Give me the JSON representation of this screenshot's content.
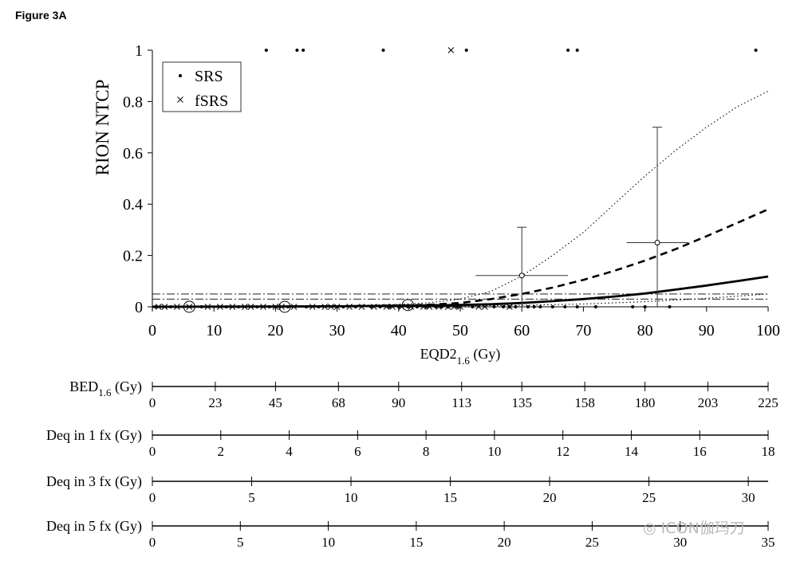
{
  "figure_label": "Figure 3A",
  "watermark": "ICON伽玛刀",
  "chart_data": {
    "type": "scatter",
    "xlabel": "EQD2",
    "xlabel_sub": "1.6",
    "xlabel_unit": " (Gy)",
    "ylabel": "RION NTCP",
    "xlim": [
      0,
      100
    ],
    "ylim": [
      0,
      1
    ],
    "x_ticks": [
      0,
      10,
      20,
      30,
      40,
      50,
      60,
      70,
      80,
      90,
      100
    ],
    "y_ticks": [
      {
        "value": 0,
        "label": "0"
      },
      {
        "value": 0.2,
        "label": "0.2"
      },
      {
        "value": 0.4,
        "label": "0.4"
      },
      {
        "value": 0.6,
        "label": "0.6"
      },
      {
        "value": 0.8,
        "label": "0.8"
      },
      {
        "value": 1,
        "label": "1"
      }
    ],
    "legend": {
      "placement": "top-left",
      "entries": [
        {
          "marker": "dot",
          "label": "SRS"
        },
        {
          "marker": "cross",
          "label": "fSRS"
        }
      ]
    },
    "series": [
      {
        "name": "SRS",
        "marker": "dot",
        "points": [
          [
            18.5,
            1
          ],
          [
            23.5,
            1
          ],
          [
            24.5,
            1
          ],
          [
            37.5,
            1
          ],
          [
            51,
            1
          ],
          [
            67.5,
            1
          ],
          [
            69,
            1
          ],
          [
            98,
            1
          ],
          [
            0.5,
            0
          ],
          [
            3,
            0
          ],
          [
            8,
            0
          ],
          [
            12,
            0
          ],
          [
            14,
            0
          ],
          [
            17,
            0
          ],
          [
            19,
            0
          ],
          [
            22,
            0
          ],
          [
            25,
            0
          ],
          [
            27,
            0
          ],
          [
            31,
            0
          ],
          [
            33,
            0
          ],
          [
            35.5,
            0
          ],
          [
            37,
            0
          ],
          [
            38.5,
            0
          ],
          [
            40,
            0
          ],
          [
            41.5,
            0
          ],
          [
            43,
            0
          ],
          [
            44.5,
            0
          ],
          [
            46,
            0
          ],
          [
            47,
            0
          ],
          [
            48,
            0
          ],
          [
            49.5,
            0
          ],
          [
            52,
            0
          ],
          [
            55.5,
            0
          ],
          [
            57,
            0
          ],
          [
            58,
            0
          ],
          [
            59,
            0
          ],
          [
            61,
            0
          ],
          [
            62,
            0
          ],
          [
            63,
            0
          ],
          [
            65,
            0
          ],
          [
            67,
            0
          ],
          [
            69,
            0
          ],
          [
            72,
            0
          ],
          [
            78,
            0
          ],
          [
            80,
            0
          ],
          [
            84,
            0
          ]
        ]
      },
      {
        "name": "fSRS",
        "marker": "cross",
        "points": [
          [
            48.5,
            1
          ],
          [
            1,
            0
          ],
          [
            2,
            0
          ],
          [
            4,
            0
          ],
          [
            6,
            0
          ],
          [
            9,
            0
          ],
          [
            11,
            0
          ],
          [
            13,
            0
          ],
          [
            15,
            0
          ],
          [
            16,
            0
          ],
          [
            18,
            0
          ],
          [
            20,
            0
          ],
          [
            21,
            0
          ],
          [
            23,
            0
          ],
          [
            26,
            0
          ],
          [
            28,
            0
          ],
          [
            29,
            0
          ],
          [
            30,
            0
          ],
          [
            32,
            0
          ],
          [
            34,
            0
          ],
          [
            36,
            0
          ],
          [
            38,
            0
          ],
          [
            39,
            0
          ],
          [
            40.5,
            0
          ],
          [
            42,
            0
          ],
          [
            44,
            0
          ],
          [
            45,
            0
          ],
          [
            46.5,
            0
          ],
          [
            48,
            0
          ],
          [
            49,
            0
          ],
          [
            50,
            0
          ],
          [
            53,
            0
          ],
          [
            54,
            0
          ],
          [
            58,
            0
          ]
        ]
      }
    ],
    "binned_estimates": [
      {
        "x": 6,
        "y": 0,
        "marker": "circle"
      },
      {
        "x": 21.5,
        "y": 0,
        "marker": "circle"
      },
      {
        "x": 41.5,
        "y": 0.007,
        "marker": "circle"
      },
      {
        "x": 60,
        "y": 0.122,
        "x_err": [
          52.5,
          67.5
        ],
        "y_err": [
          0,
          0.31
        ]
      },
      {
        "x": 82,
        "y": 0.25,
        "x_err": [
          77,
          87
        ],
        "y_err": [
          0,
          0.7
        ]
      }
    ],
    "model_curves": [
      {
        "style": "solid",
        "x": [
          0,
          10,
          20,
          30,
          40,
          50,
          55,
          60,
          65,
          70,
          75,
          80,
          85,
          90,
          95,
          100
        ],
        "y": [
          0,
          0.0005,
          0.001,
          0.002,
          0.004,
          0.007,
          0.01,
          0.015,
          0.022,
          0.03,
          0.04,
          0.052,
          0.067,
          0.083,
          0.1,
          0.118
        ]
      },
      {
        "style": "dashed",
        "x": [
          0,
          10,
          20,
          30,
          40,
          45,
          50,
          55,
          60,
          65,
          70,
          75,
          80,
          85,
          90,
          95,
          100
        ],
        "y": [
          0,
          0.0005,
          0.001,
          0.002,
          0.004,
          0.008,
          0.015,
          0.03,
          0.05,
          0.075,
          0.105,
          0.14,
          0.18,
          0.225,
          0.275,
          0.327,
          0.38
        ]
      },
      {
        "style": "dotted",
        "x": [
          0,
          10,
          20,
          30,
          40,
          45,
          50,
          55,
          60,
          65,
          70,
          75,
          80,
          85,
          90,
          95,
          100
        ],
        "y": [
          0,
          0.001,
          0.002,
          0.004,
          0.009,
          0.016,
          0.03,
          0.06,
          0.12,
          0.2,
          0.29,
          0.4,
          0.51,
          0.61,
          0.7,
          0.78,
          0.84
        ]
      },
      {
        "style": "dotted",
        "x": [
          0,
          20,
          40,
          50,
          60,
          70,
          80,
          90,
          100
        ],
        "y": [
          0,
          0.001,
          0.002,
          0.003,
          0.006,
          0.011,
          0.02,
          0.033,
          0.05
        ]
      },
      {
        "style": "dashdot",
        "x": [
          0,
          100
        ],
        "y": [
          0.05,
          0.05
        ]
      },
      {
        "style": "dashdot",
        "x": [
          0,
          100
        ],
        "y": [
          0.03,
          0.03
        ]
      }
    ],
    "secondary_axes": [
      {
        "label": "BED",
        "label_sub": "1.6",
        "label_unit": " (Gy)",
        "max": 225,
        "ticks": [
          0,
          23,
          45,
          68,
          90,
          113,
          135,
          158,
          180,
          203,
          225
        ],
        "tick_labels": [
          "0",
          "23",
          "45",
          "68",
          "90",
          "113",
          "135",
          "158",
          "180",
          "203",
          "225"
        ]
      },
      {
        "label": "Deq in 1 fx (Gy)",
        "label_sub": "",
        "label_unit": "",
        "max": 18,
        "ticks": [
          0,
          2,
          4,
          6,
          8,
          10,
          12,
          14,
          16,
          18
        ],
        "tick_labels": [
          "0",
          "2",
          "4",
          "6",
          "8",
          "10",
          "12",
          "14",
          "16",
          "18"
        ]
      },
      {
        "label": "Deq in 3 fx (Gy)",
        "label_sub": "",
        "label_unit": "",
        "max": 31,
        "ticks": [
          0,
          5,
          10,
          15,
          20,
          25,
          30
        ],
        "tick_labels": [
          "0",
          "5",
          "10",
          "15",
          "20",
          "25",
          "30"
        ]
      },
      {
        "label": "Deq in 5 fx (Gy)",
        "label_sub": "",
        "label_unit": "",
        "max": 35,
        "ticks": [
          0,
          5,
          10,
          15,
          20,
          25,
          30,
          35
        ],
        "tick_labels": [
          "0",
          "5",
          "10",
          "15",
          "20",
          "25",
          "30",
          "35"
        ]
      }
    ]
  }
}
